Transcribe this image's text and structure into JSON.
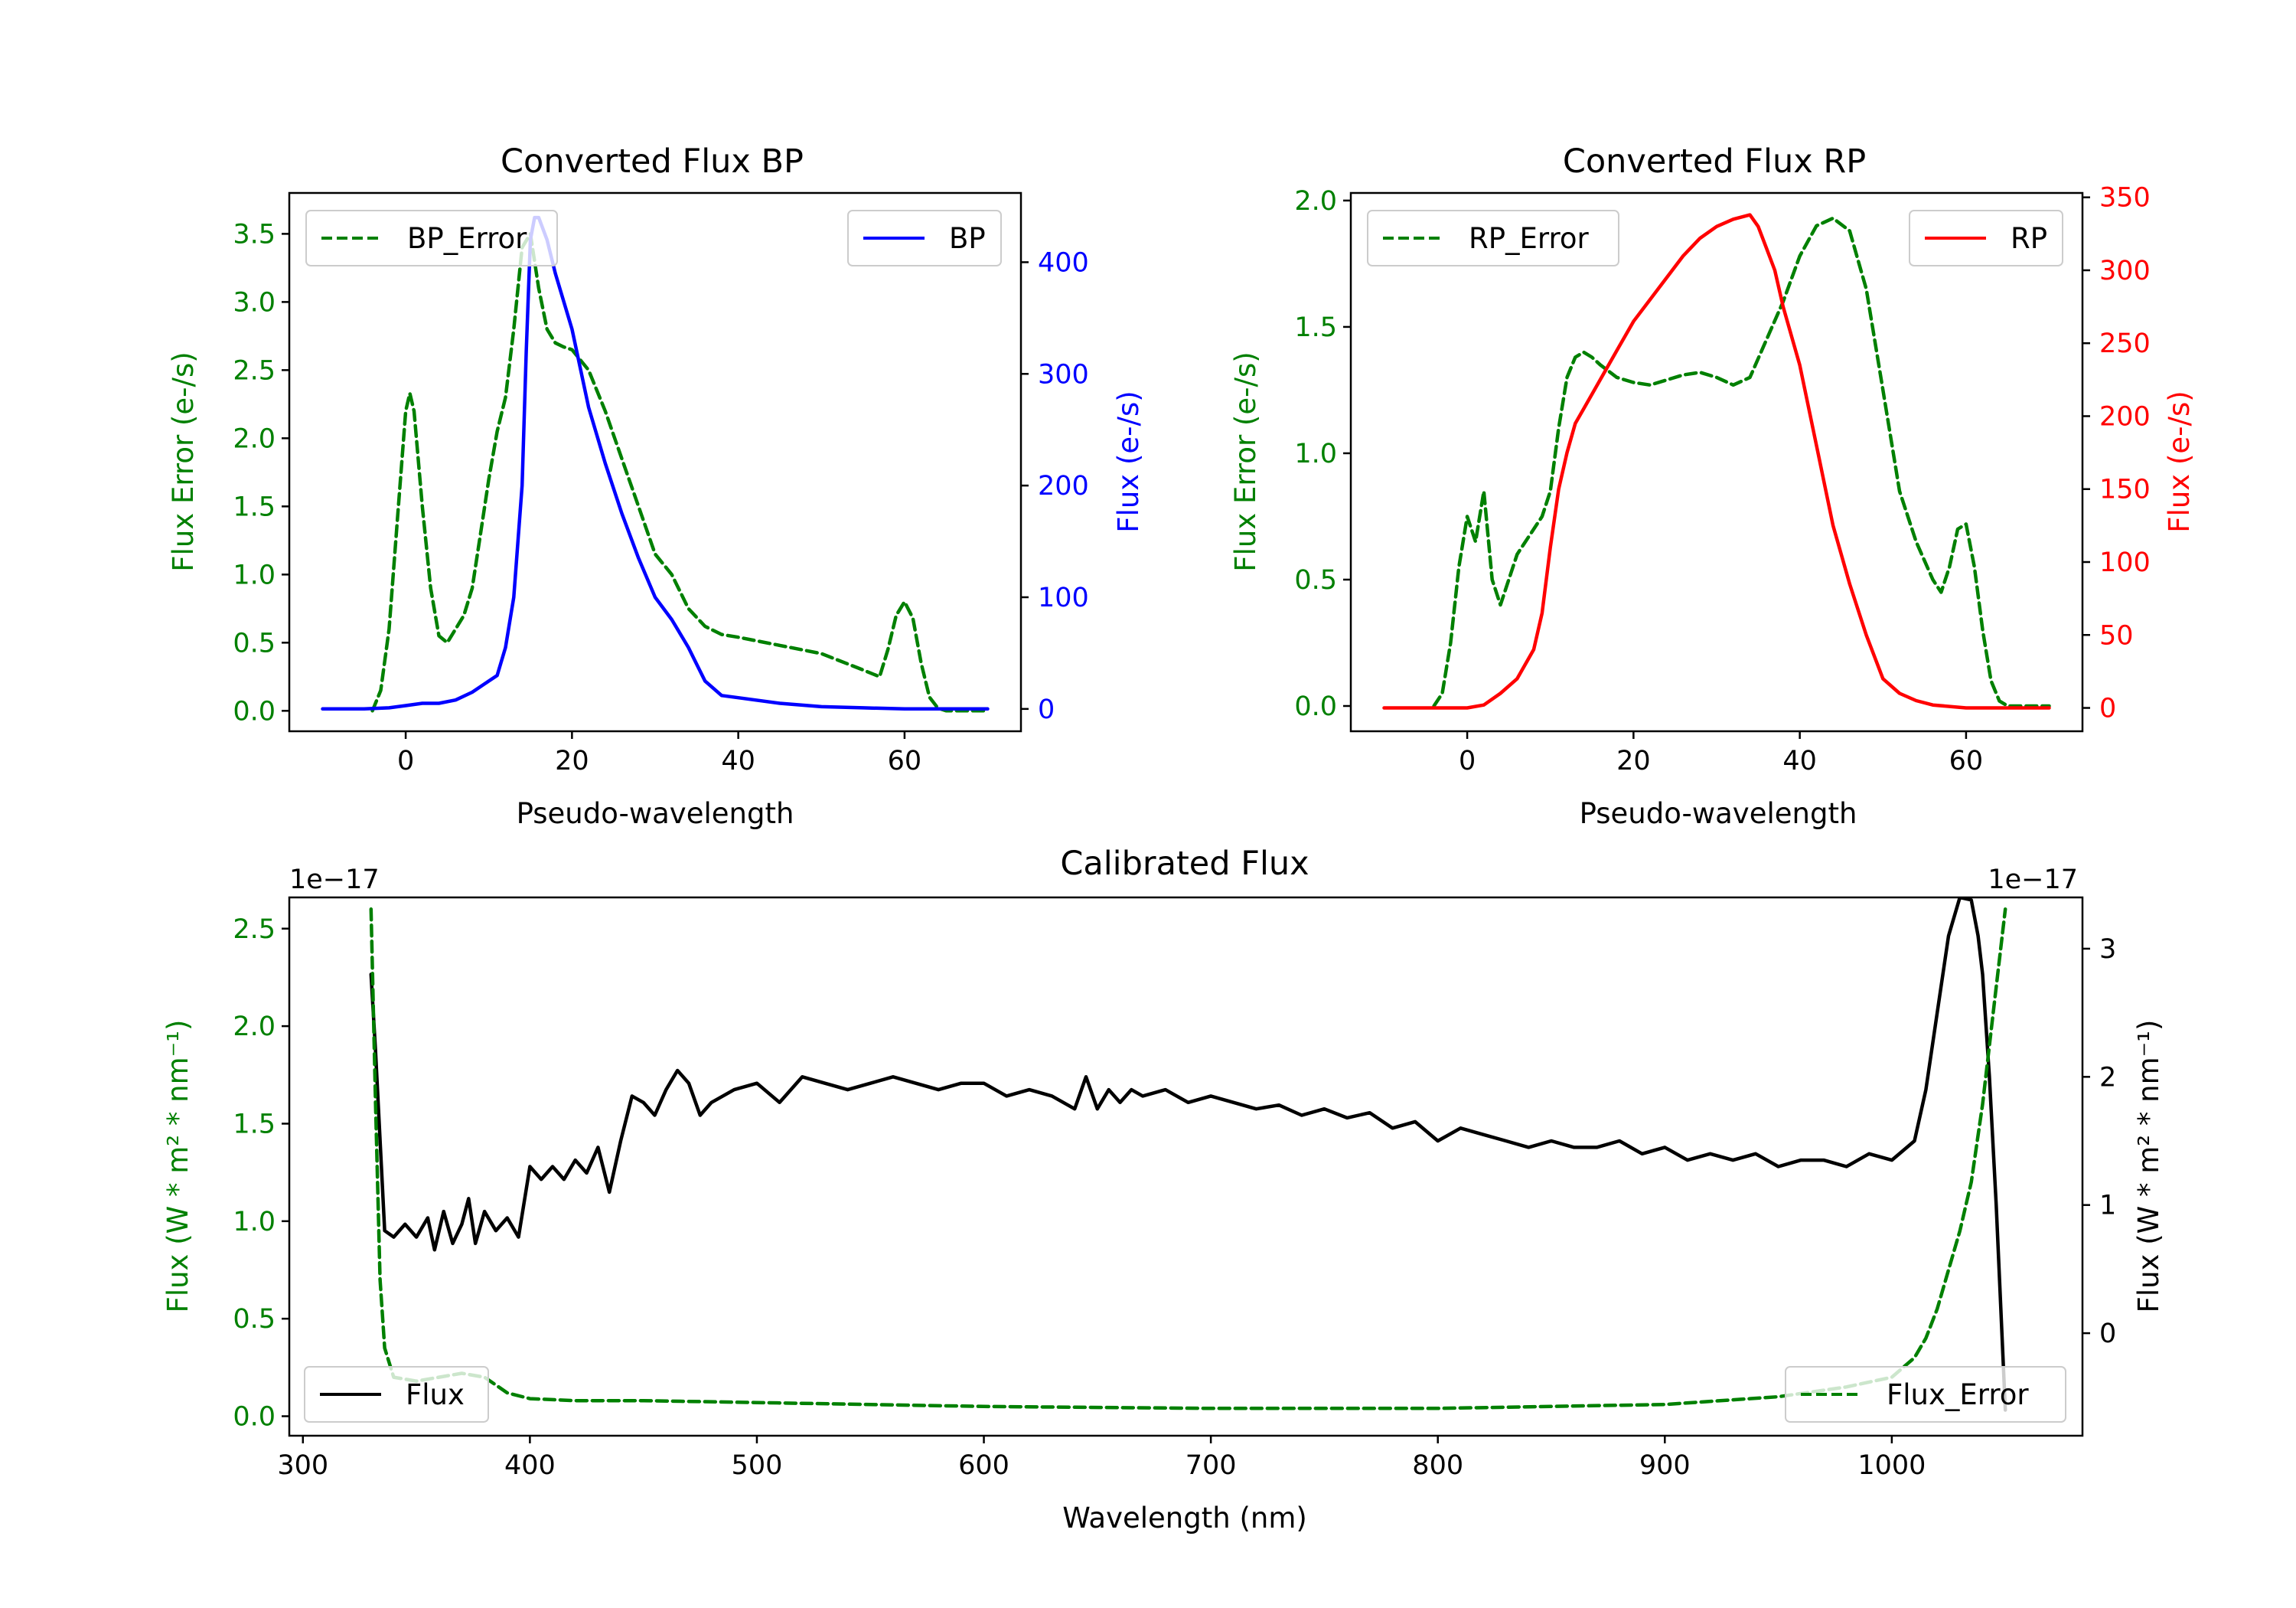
{
  "chart_data": [
    {
      "type": "line",
      "title": "Converted Flux BP",
      "xlabel": "Pseudo-wavelength",
      "ylabel_left": "Flux Error (e-/s)",
      "ylabel_right": "Flux (e-/s)",
      "xlim": [
        -14,
        74
      ],
      "ylim_left": [
        -0.15,
        3.8
      ],
      "ylim_right": [
        -20,
        462
      ],
      "xticks": [
        "0",
        "20",
        "40",
        "60"
      ],
      "yticks_left": [
        "0.0",
        "0.5",
        "1.0",
        "1.5",
        "2.0",
        "2.5",
        "3.0",
        "3.5"
      ],
      "yticks_right": [
        "0",
        "100",
        "200",
        "300",
        "400"
      ],
      "colors": {
        "left_axis": "#008000",
        "right_axis": "#0000ff",
        "error": "#008000",
        "flux": "#0000ff"
      },
      "legend_error": "BP_Error",
      "legend_flux": "BP",
      "series": [
        {
          "name": "BP_Error",
          "axis": "left",
          "style": "dashed",
          "x": [
            -4,
            -3,
            -2,
            -1,
            0,
            0.5,
            1,
            2,
            3,
            4,
            5,
            6,
            7,
            8,
            9,
            10,
            11,
            12,
            13,
            14,
            15,
            16,
            17,
            18,
            19,
            20,
            22,
            24,
            26,
            28,
            30,
            32,
            34,
            36,
            38,
            40,
            45,
            50,
            55,
            57,
            58,
            59,
            60,
            61,
            62,
            63,
            64,
            65,
            67,
            70
          ],
          "y": [
            0.0,
            0.15,
            0.6,
            1.4,
            2.2,
            2.33,
            2.2,
            1.5,
            0.9,
            0.55,
            0.5,
            0.6,
            0.7,
            0.9,
            1.3,
            1.7,
            2.05,
            2.3,
            2.8,
            3.4,
            3.5,
            3.1,
            2.8,
            2.7,
            2.67,
            2.65,
            2.5,
            2.2,
            1.85,
            1.5,
            1.15,
            1.0,
            0.75,
            0.62,
            0.56,
            0.54,
            0.48,
            0.42,
            0.3,
            0.25,
            0.45,
            0.7,
            0.8,
            0.68,
            0.35,
            0.1,
            0.02,
            0.0,
            0.0,
            0.0
          ]
        },
        {
          "name": "BP",
          "axis": "right",
          "style": "solid",
          "x": [
            -10,
            -5,
            -2,
            0,
            2,
            4,
            6,
            8,
            10,
            11,
            12,
            13,
            14,
            14.5,
            15,
            15.5,
            16,
            17,
            18,
            20,
            22,
            24,
            26,
            28,
            30,
            32,
            34,
            35,
            36,
            38,
            40,
            45,
            50,
            55,
            60,
            70
          ],
          "y": [
            0,
            0,
            1,
            3,
            5,
            5,
            8,
            15,
            25,
            30,
            55,
            100,
            200,
            320,
            420,
            440,
            440,
            420,
            390,
            340,
            270,
            220,
            175,
            135,
            100,
            80,
            55,
            40,
            25,
            12,
            10,
            5,
            2,
            1,
            0,
            0
          ]
        }
      ]
    },
    {
      "type": "line",
      "title": "Converted Flux RP",
      "xlabel": "Pseudo-wavelength",
      "ylabel_left": "Flux Error (e-/s)",
      "ylabel_right": "Flux (e-/s)",
      "xlim": [
        -14,
        74
      ],
      "ylim_left": [
        -0.1,
        2.03
      ],
      "ylim_right": [
        -16,
        353
      ],
      "xticks": [
        "0",
        "20",
        "40",
        "60"
      ],
      "yticks_left": [
        "0.0",
        "0.5",
        "1.0",
        "1.5",
        "2.0"
      ],
      "yticks_right": [
        "0",
        "50",
        "100",
        "150",
        "200",
        "250",
        "300",
        "350"
      ],
      "colors": {
        "left_axis": "#008000",
        "right_axis": "#ff0000",
        "error": "#008000",
        "flux": "#ff0000"
      },
      "legend_error": "RP_Error",
      "legend_flux": "RP",
      "series": [
        {
          "name": "RP_Error",
          "axis": "left",
          "style": "dashed",
          "x": [
            -4,
            -3,
            -2,
            -1,
            0,
            1,
            2,
            3,
            4,
            5,
            6,
            7,
            8,
            9,
            10,
            11,
            12,
            13,
            14,
            15,
            16,
            18,
            20,
            22,
            24,
            26,
            28,
            30,
            32,
            34,
            36,
            38,
            40,
            42,
            44,
            46,
            48,
            50,
            52,
            54,
            56,
            57,
            58,
            59,
            60,
            61,
            62,
            63,
            64,
            65,
            70
          ],
          "y": [
            0.0,
            0.05,
            0.25,
            0.55,
            0.75,
            0.65,
            0.85,
            0.5,
            0.4,
            0.5,
            0.6,
            0.65,
            0.7,
            0.75,
            0.85,
            1.1,
            1.3,
            1.38,
            1.4,
            1.38,
            1.35,
            1.3,
            1.28,
            1.27,
            1.29,
            1.31,
            1.32,
            1.3,
            1.27,
            1.3,
            1.45,
            1.6,
            1.78,
            1.9,
            1.93,
            1.88,
            1.65,
            1.25,
            0.85,
            0.65,
            0.5,
            0.45,
            0.55,
            0.7,
            0.72,
            0.55,
            0.3,
            0.1,
            0.02,
            0.0,
            0.0
          ]
        },
        {
          "name": "RP",
          "axis": "right",
          "style": "solid",
          "x": [
            -10,
            -2,
            0,
            2,
            4,
            6,
            8,
            9,
            10,
            11,
            12,
            13,
            14,
            16,
            18,
            20,
            22,
            24,
            26,
            28,
            30,
            32,
            34,
            35,
            36,
            37,
            38,
            40,
            42,
            44,
            46,
            48,
            50,
            52,
            54,
            56,
            60,
            65,
            70
          ],
          "y": [
            0,
            0,
            0,
            2,
            10,
            20,
            40,
            65,
            110,
            150,
            175,
            195,
            205,
            225,
            245,
            265,
            280,
            295,
            310,
            322,
            330,
            335,
            338,
            330,
            315,
            300,
            275,
            235,
            180,
            125,
            85,
            50,
            20,
            10,
            5,
            2,
            0,
            0,
            0
          ]
        }
      ]
    },
    {
      "type": "line",
      "title": "Calibrated Flux",
      "xlabel": "Wavelength (nm)",
      "ylabel_left": "Flux (W * m² * nm⁻¹)",
      "ylabel_right": "Flux (W * m² * nm⁻¹)",
      "offset_left": "1e−17",
      "offset_right": "1e−17",
      "xlim": [
        294,
        1084
      ],
      "ylim_left": [
        -0.1,
        2.66
      ],
      "ylim_right": [
        -0.8,
        3.4
      ],
      "xticks": [
        "300",
        "400",
        "500",
        "600",
        "700",
        "800",
        "900",
        "1000"
      ],
      "yticks_left": [
        "0.0",
        "0.5",
        "1.0",
        "1.5",
        "2.0",
        "2.5"
      ],
      "yticks_right": [
        "0",
        "1",
        "2",
        "3"
      ],
      "colors": {
        "left_axis": "#008000",
        "right_axis": "#000000",
        "error": "#008000",
        "flux": "#000000"
      },
      "legend_flux": "Flux",
      "legend_error": "Flux_Error",
      "series": [
        {
          "name": "Flux",
          "axis": "right",
          "style": "solid",
          "x": [
            330,
            332,
            336,
            340,
            345,
            350,
            355,
            358,
            362,
            366,
            370,
            373,
            376,
            380,
            385,
            390,
            395,
            400,
            405,
            410,
            415,
            420,
            425,
            430,
            435,
            440,
            445,
            450,
            455,
            460,
            465,
            470,
            475,
            480,
            490,
            500,
            510,
            520,
            530,
            540,
            550,
            560,
            570,
            580,
            590,
            600,
            610,
            620,
            630,
            640,
            645,
            650,
            655,
            660,
            665,
            670,
            680,
            690,
            700,
            710,
            720,
            730,
            740,
            750,
            760,
            770,
            780,
            790,
            800,
            810,
            820,
            830,
            840,
            850,
            860,
            870,
            880,
            890,
            900,
            910,
            920,
            930,
            940,
            950,
            960,
            970,
            980,
            990,
            1000,
            1010,
            1015,
            1020,
            1025,
            1030,
            1035,
            1038,
            1040,
            1043,
            1046,
            1050
          ],
          "y": [
            2.8,
            2.2,
            0.8,
            0.75,
            0.85,
            0.75,
            0.9,
            0.65,
            0.95,
            0.7,
            0.85,
            1.05,
            0.7,
            0.95,
            0.8,
            0.9,
            0.75,
            1.3,
            1.2,
            1.3,
            1.2,
            1.35,
            1.25,
            1.45,
            1.1,
            1.5,
            1.85,
            1.8,
            1.7,
            1.9,
            2.05,
            1.95,
            1.7,
            1.8,
            1.9,
            1.95,
            1.8,
            2.0,
            1.95,
            1.9,
            1.95,
            2.0,
            1.95,
            1.9,
            1.95,
            1.95,
            1.85,
            1.9,
            1.85,
            1.75,
            2.0,
            1.75,
            1.9,
            1.8,
            1.9,
            1.85,
            1.9,
            1.8,
            1.85,
            1.8,
            1.75,
            1.78,
            1.7,
            1.75,
            1.68,
            1.72,
            1.6,
            1.65,
            1.5,
            1.6,
            1.55,
            1.5,
            1.45,
            1.5,
            1.45,
            1.45,
            1.5,
            1.4,
            1.45,
            1.35,
            1.4,
            1.35,
            1.4,
            1.3,
            1.35,
            1.35,
            1.3,
            1.4,
            1.35,
            1.5,
            1.9,
            2.5,
            3.1,
            3.4,
            3.38,
            3.1,
            2.8,
            2.0,
            1.0,
            -0.6
          ]
        },
        {
          "name": "Flux_Error",
          "axis": "left",
          "style": "dashed",
          "x": [
            330,
            332,
            334,
            336,
            340,
            350,
            360,
            370,
            380,
            390,
            400,
            420,
            450,
            500,
            600,
            700,
            800,
            900,
            950,
            980,
            1000,
            1010,
            1015,
            1020,
            1025,
            1030,
            1035,
            1040,
            1045,
            1050
          ],
          "y": [
            2.6,
            1.6,
            0.7,
            0.35,
            0.2,
            0.18,
            0.2,
            0.22,
            0.2,
            0.12,
            0.09,
            0.08,
            0.08,
            0.07,
            0.05,
            0.04,
            0.04,
            0.06,
            0.1,
            0.15,
            0.2,
            0.3,
            0.4,
            0.55,
            0.75,
            0.95,
            1.2,
            1.6,
            2.1,
            2.6
          ]
        }
      ]
    }
  ]
}
